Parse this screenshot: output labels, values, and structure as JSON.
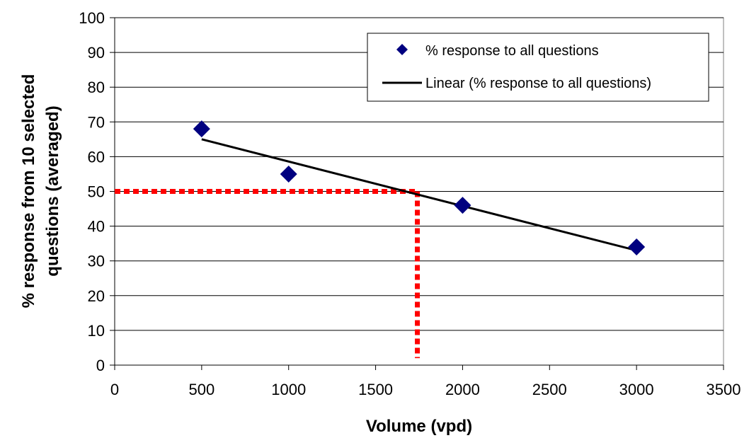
{
  "chart_data": {
    "type": "scatter",
    "xlabel": "Volume (vpd)",
    "ylabel_lines": [
      "% response from 10 selected",
      "questions (averaged)"
    ],
    "xlim": [
      0,
      3500
    ],
    "ylim": [
      0,
      100
    ],
    "xticks": [
      0,
      500,
      1000,
      1500,
      2000,
      2500,
      3000,
      3500
    ],
    "yticks": [
      0,
      10,
      20,
      30,
      40,
      50,
      60,
      70,
      80,
      90,
      100
    ],
    "grid": "horizontal",
    "legend_position": "top-right",
    "series": [
      {
        "name": "% response to all questions",
        "marker": "diamond",
        "color": "#000080",
        "points": [
          {
            "x": 500,
            "y": 68
          },
          {
            "x": 1000,
            "y": 55
          },
          {
            "x": 2000,
            "y": 46
          },
          {
            "x": 3000,
            "y": 34
          }
        ]
      }
    ],
    "trendline": {
      "name": "Linear (% response to all questions)",
      "color": "#000000",
      "from": {
        "x": 500,
        "y": 65
      },
      "to": {
        "x": 3000,
        "y": 33
      }
    },
    "reference_lines": {
      "color": "#ff0000",
      "horizontal": {
        "y": 50,
        "x_from": 0,
        "x_to": 1740
      },
      "vertical": {
        "x": 1740,
        "y_from": 50,
        "y_to": 2
      }
    }
  }
}
